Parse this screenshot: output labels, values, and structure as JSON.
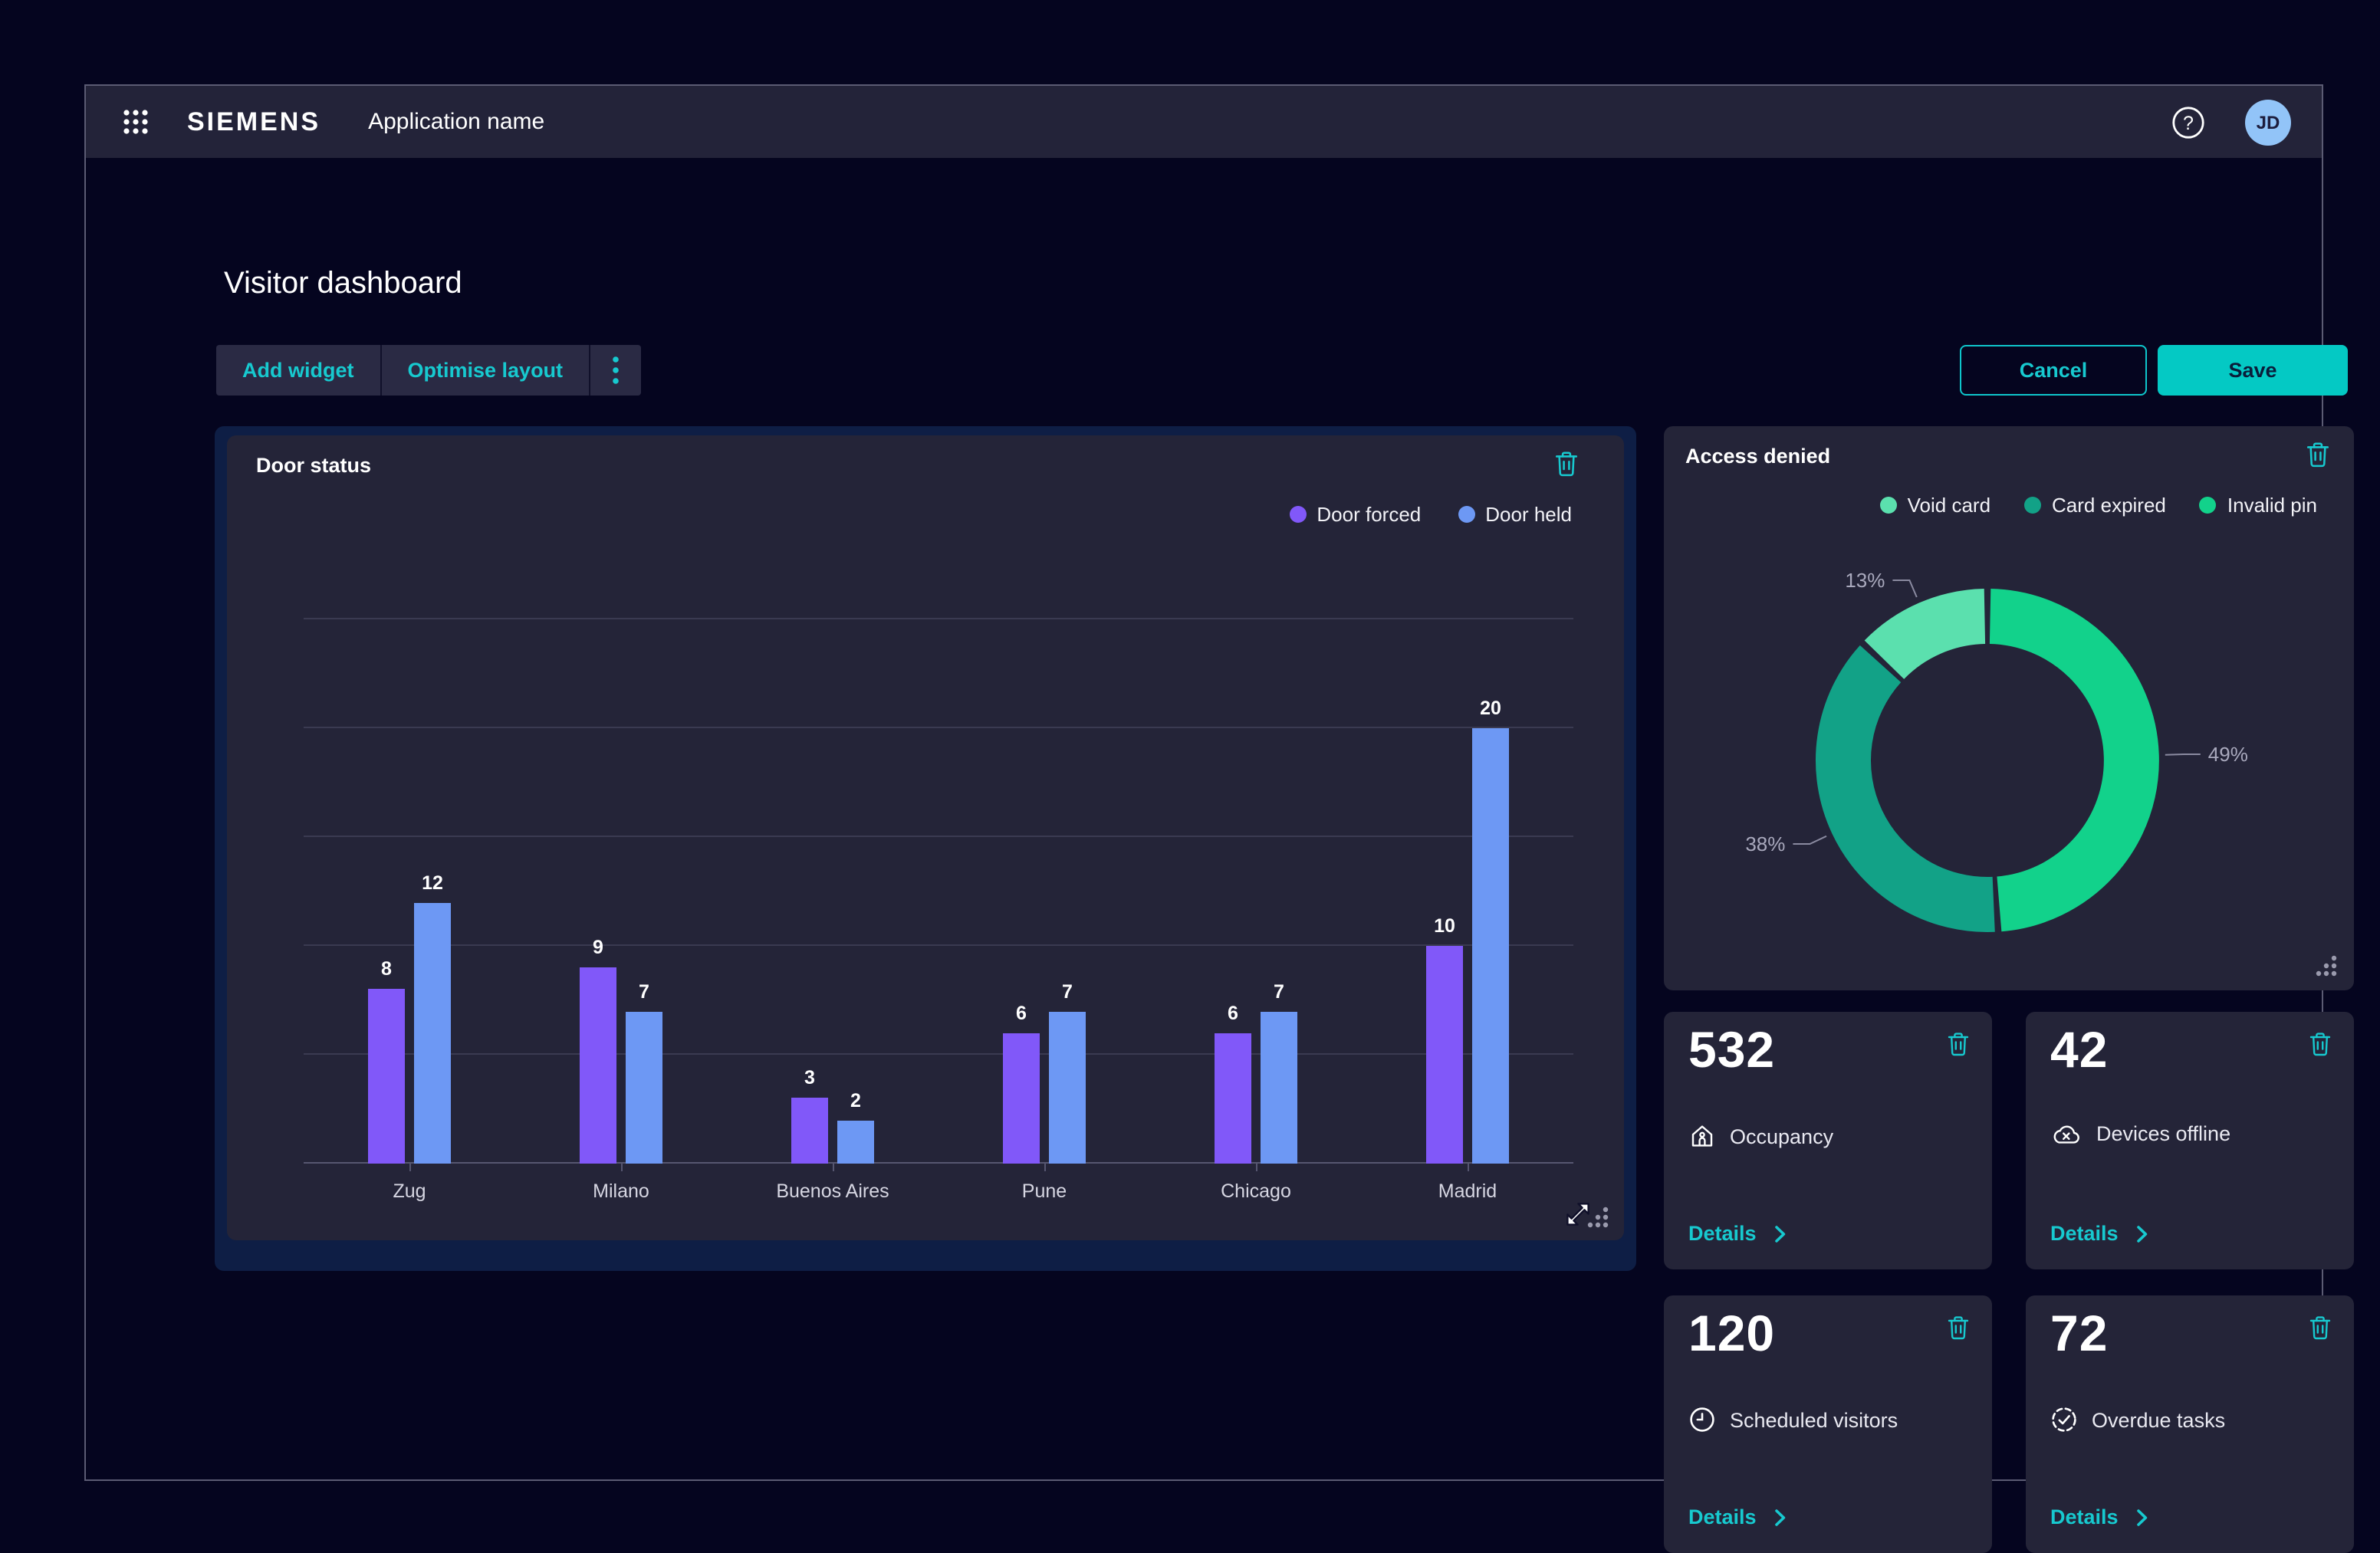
{
  "header": {
    "brand": "SIEMENS",
    "app_name": "Application name",
    "avatar_initials": "JD"
  },
  "page": {
    "title": "Visitor dashboard"
  },
  "toolbar": {
    "add_widget": "Add widget",
    "optimise_layout": "Optimise layout"
  },
  "actions": {
    "cancel": "Cancel",
    "save": "Save"
  },
  "kpis": {
    "details_label": "Details",
    "cards": [
      {
        "value": "532",
        "label": "Occupancy",
        "icon": "occupancy-house-person-icon"
      },
      {
        "value": "42",
        "label": "Devices offline",
        "icon": "cloud-offline-icon"
      },
      {
        "value": "120",
        "label": "Scheduled visitors",
        "icon": "clock-icon"
      },
      {
        "value": "72",
        "label": "Overdue tasks",
        "icon": "task-check-icon"
      }
    ]
  },
  "chart_data": [
    {
      "type": "bar",
      "title": "Door status",
      "categories": [
        "Zug",
        "Milano",
        "Buenos Aires",
        "Pune",
        "Chicago",
        "Madrid"
      ],
      "series": [
        {
          "name": "Door forced",
          "color": "#8158f9",
          "values": [
            8,
            9,
            3,
            6,
            6,
            10
          ]
        },
        {
          "name": "Door held",
          "color": "#6d98f4",
          "values": [
            12,
            7,
            2,
            7,
            7,
            20
          ]
        }
      ],
      "ylim": [
        0,
        25
      ],
      "grid_step": 5,
      "grid": true,
      "legend_position": "top-right",
      "value_labels": true
    },
    {
      "type": "donut",
      "title": "Access denied",
      "segments": [
        {
          "label": "Invalid pin",
          "value": 49,
          "color": "#12d28b"
        },
        {
          "label": "Card expired",
          "value": 38,
          "color": "#12a287"
        },
        {
          "label": "Void card",
          "value": 13,
          "color": "#5be0ae"
        }
      ],
      "legend_order": [
        "Void card",
        "Card expired",
        "Invalid pin"
      ],
      "start_angle": 0,
      "direction": "clockwise",
      "labels": "percent-outside",
      "legend_position": "top-right"
    }
  ],
  "colors": {
    "accent": "#17c9cf",
    "save_fill": "#04c9c4",
    "purple": "#8158f9",
    "blue": "#6d98f4",
    "green_bright": "#12d28b",
    "green_mid": "#12a287",
    "green_light": "#5be0ae",
    "avatar_bg": "#92c4f8"
  }
}
